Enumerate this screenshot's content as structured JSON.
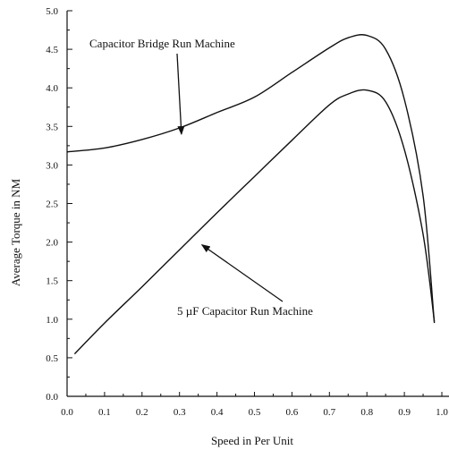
{
  "chart_data": {
    "type": "line",
    "title": "",
    "xlabel": "Speed in Per Unit",
    "ylabel": "Average Torque in NM",
    "xlim": [
      0.0,
      1.0
    ],
    "ylim": [
      0.0,
      5.0
    ],
    "x_ticks": [
      "0.0",
      "0.1",
      "0.2",
      "0.3",
      "0.4",
      "0.5",
      "0.6",
      "0.7",
      "0.8",
      "0.9",
      "1.0"
    ],
    "y_ticks": [
      "0.0",
      "0.5",
      "1.0",
      "1.5",
      "2.0",
      "2.5",
      "3.0",
      "3.5",
      "4.0",
      "4.5",
      "5.0"
    ],
    "grid": false,
    "series": [
      {
        "name": "Capacitor Bridge Run Machine",
        "x": [
          0.0,
          0.1,
          0.2,
          0.3,
          0.4,
          0.5,
          0.6,
          0.7,
          0.75,
          0.8,
          0.85,
          0.9,
          0.95,
          0.98
        ],
        "y": [
          3.17,
          3.22,
          3.33,
          3.48,
          3.68,
          3.88,
          4.2,
          4.52,
          4.65,
          4.68,
          4.5,
          3.85,
          2.6,
          0.95
        ]
      },
      {
        "name": "5 µF Capacitor Run Machine",
        "x": [
          0.02,
          0.1,
          0.2,
          0.3,
          0.4,
          0.5,
          0.6,
          0.7,
          0.75,
          0.8,
          0.85,
          0.9,
          0.95,
          0.98
        ],
        "y": [
          0.55,
          0.95,
          1.42,
          1.9,
          2.38,
          2.85,
          3.32,
          3.78,
          3.92,
          3.97,
          3.82,
          3.2,
          2.1,
          0.97
        ]
      }
    ],
    "annotations": [
      {
        "text": "Capacitor Bridge Run Machine",
        "arrow_to": [
          0.31,
          3.48
        ]
      },
      {
        "text": "5 µF Capacitor Run Machine",
        "arrow_to": [
          0.35,
          2.0
        ]
      }
    ]
  }
}
